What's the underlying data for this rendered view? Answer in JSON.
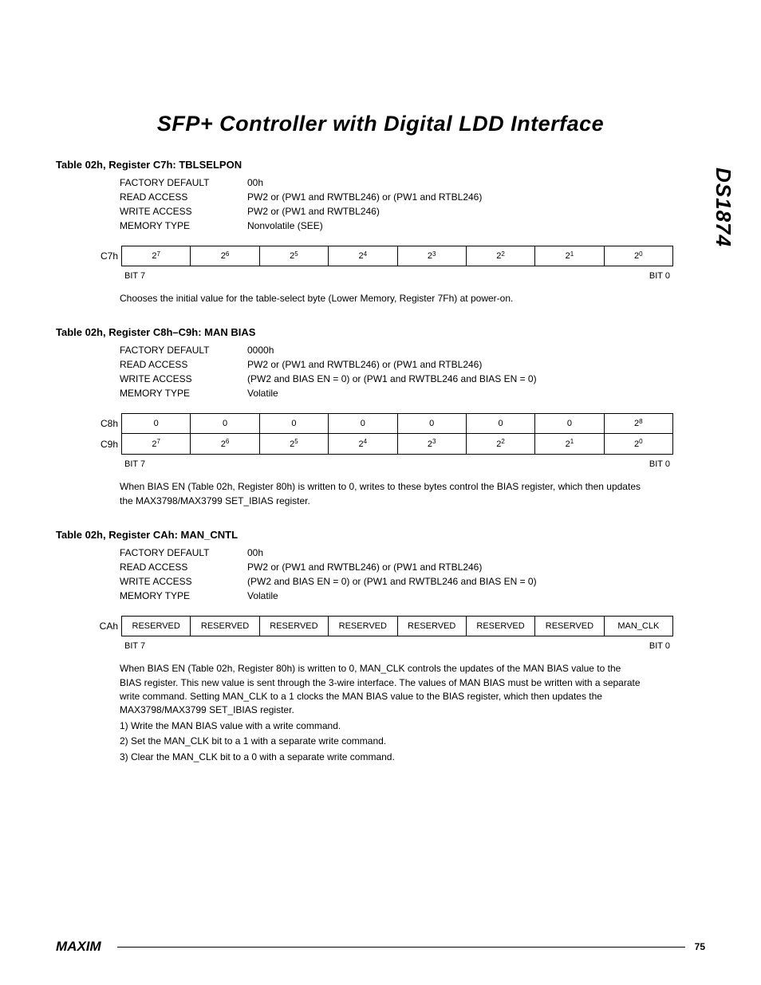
{
  "title": "SFP+ Controller with Digital LDD Interface",
  "part_number": "DS1874",
  "page_number": "75",
  "logo_text": "MAXIM",
  "bit_ends": {
    "msb": "BIT 7",
    "lsb": "BIT 0"
  },
  "sections": [
    {
      "heading": "Table 02h, Register C7h: TBLSELPON",
      "attrs": {
        "factory_default": "00h",
        "read_access": "PW2 or (PW1 and RWTBL246) or (PW1 and RTBL246)",
        "write_access": "PW2 or (PW1 and RWTBL246)",
        "memory_type": "Nonvolatile (SEE)"
      },
      "rows": [
        {
          "label": "C7h",
          "cells": [
            {
              "base": "2",
              "exp": "7"
            },
            {
              "base": "2",
              "exp": "6"
            },
            {
              "base": "2",
              "exp": "5"
            },
            {
              "base": "2",
              "exp": "4"
            },
            {
              "base": "2",
              "exp": "3"
            },
            {
              "base": "2",
              "exp": "2"
            },
            {
              "base": "2",
              "exp": "1"
            },
            {
              "base": "2",
              "exp": "0"
            }
          ]
        }
      ],
      "desc": [
        "Chooses the initial value for the table-select byte (Lower Memory, Register 7Fh) at power-on."
      ]
    },
    {
      "heading": "Table 02h, Register C8h–C9h: MAN BIAS",
      "attrs": {
        "factory_default": "0000h",
        "read_access": "PW2 or (PW1 and RWTBL246) or (PW1 and RTBL246)",
        "write_access": "(PW2 and BIAS EN = 0) or (PW1 and RWTBL246 and BIAS EN = 0)",
        "memory_type": "Volatile"
      },
      "rows": [
        {
          "label": "C8h",
          "cells": [
            {
              "text": "0"
            },
            {
              "text": "0"
            },
            {
              "text": "0"
            },
            {
              "text": "0"
            },
            {
              "text": "0"
            },
            {
              "text": "0"
            },
            {
              "text": "0"
            },
            {
              "base": "2",
              "exp": "8"
            }
          ]
        },
        {
          "label": "C9h",
          "cells": [
            {
              "base": "2",
              "exp": "7"
            },
            {
              "base": "2",
              "exp": "6"
            },
            {
              "base": "2",
              "exp": "5"
            },
            {
              "base": "2",
              "exp": "4"
            },
            {
              "base": "2",
              "exp": "3"
            },
            {
              "base": "2",
              "exp": "2"
            },
            {
              "base": "2",
              "exp": "1"
            },
            {
              "base": "2",
              "exp": "0"
            }
          ]
        }
      ],
      "desc": [
        "When BIAS EN (Table 02h, Register 80h) is written to 0, writes to these bytes control the BIAS register, which then updates the MAX3798/MAX3799 SET_IBIAS register."
      ]
    },
    {
      "heading": "Table 02h, Register CAh: MAN_CNTL",
      "attrs": {
        "factory_default": "00h",
        "read_access": "PW2 or (PW1 and RWTBL246) or (PW1 and RTBL246)",
        "write_access": "(PW2 and BIAS EN = 0) or (PW1 and RWTBL246 and BIAS EN = 0)",
        "memory_type": "Volatile"
      },
      "rows": [
        {
          "label": "CAh",
          "cells": [
            {
              "text": "RESERVED"
            },
            {
              "text": "RESERVED"
            },
            {
              "text": "RESERVED"
            },
            {
              "text": "RESERVED"
            },
            {
              "text": "RESERVED"
            },
            {
              "text": "RESERVED"
            },
            {
              "text": "RESERVED"
            },
            {
              "text": "MAN_CLK"
            }
          ]
        }
      ],
      "desc": [
        "When BIAS EN (Table 02h, Register 80h) is written to 0, MAN_CLK controls the updates of the MAN BIAS value to the BIAS register. This new value is sent through the 3-wire interface. The values of MAN BIAS must be written with a separate write command. Setting MAN_CLK to a 1 clocks the MAN BIAS value to the BIAS register, which then updates the MAX3798/MAX3799 SET_IBIAS register.",
        "1) Write the MAN BIAS value with a write command.",
        "2) Set the MAN_CLK bit to a 1 with a separate write command.",
        "3) Clear the MAN_CLK bit to a 0 with a separate write command."
      ]
    }
  ],
  "attr_labels": {
    "factory_default": "FACTORY DEFAULT",
    "read_access": "READ ACCESS",
    "write_access": "WRITE ACCESS",
    "memory_type": "MEMORY TYPE"
  }
}
